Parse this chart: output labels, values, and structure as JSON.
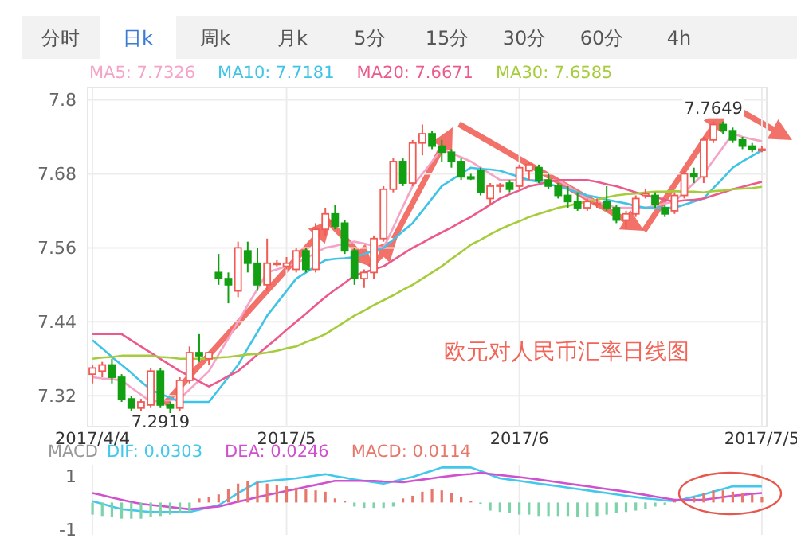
{
  "chart_data": [
    {
      "type": "candlestick",
      "title": "欧元对人民币汇率日线图",
      "categories": [
        "2017/4/4",
        null,
        null,
        null,
        null,
        null,
        null,
        null,
        null,
        null,
        null,
        null,
        null,
        null,
        null,
        null,
        null,
        null,
        null,
        null,
        "2017/5",
        null,
        null,
        null,
        null,
        null,
        null,
        null,
        null,
        null,
        null,
        null,
        null,
        null,
        null,
        null,
        null,
        null,
        null,
        null,
        null,
        null,
        null,
        null,
        "2017/6",
        null,
        null,
        null,
        null,
        null,
        null,
        null,
        null,
        null,
        null,
        null,
        null,
        null,
        null,
        null,
        null,
        null,
        null,
        null,
        null,
        null,
        null,
        null,
        null,
        "2017/7/5"
      ],
      "ohlc": [
        [
          7.355,
          7.37,
          7.34,
          7.365
        ],
        [
          7.36,
          7.375,
          7.35,
          7.37
        ],
        [
          7.37,
          7.38,
          7.34,
          7.35
        ],
        [
          7.35,
          7.355,
          7.31,
          7.315
        ],
        [
          7.315,
          7.32,
          7.295,
          7.3
        ],
        [
          7.3,
          7.315,
          7.295,
          7.31
        ],
        [
          7.305,
          7.365,
          7.3,
          7.36
        ],
        [
          7.36,
          7.365,
          7.3,
          7.305
        ],
        [
          7.305,
          7.31,
          7.2919,
          7.3
        ],
        [
          7.3,
          7.35,
          7.295,
          7.345
        ],
        [
          7.345,
          7.4,
          7.34,
          7.39
        ],
        [
          7.39,
          7.42,
          7.375,
          7.385
        ],
        [
          7.38,
          7.39,
          7.37,
          7.39
        ],
        [
          7.52,
          7.55,
          7.5,
          7.51
        ],
        [
          7.51,
          7.52,
          7.47,
          7.5
        ],
        [
          7.49,
          7.57,
          7.48,
          7.56
        ],
        [
          7.555,
          7.57,
          7.52,
          7.535
        ],
        [
          7.535,
          7.56,
          7.49,
          7.5
        ],
        [
          7.5,
          7.575,
          7.49,
          7.535
        ],
        [
          7.535,
          7.54,
          7.53,
          7.535
        ],
        [
          7.53,
          7.545,
          7.525,
          7.535
        ],
        [
          7.525,
          7.56,
          7.52,
          7.555
        ],
        [
          7.555,
          7.56,
          7.52,
          7.525
        ],
        [
          7.525,
          7.6,
          7.52,
          7.59
        ],
        [
          7.59,
          7.625,
          7.58,
          7.615
        ],
        [
          7.615,
          7.63,
          7.59,
          7.595
        ],
        [
          7.6,
          7.605,
          7.55,
          7.555
        ],
        [
          7.555,
          7.56,
          7.5,
          7.51
        ],
        [
          7.51,
          7.525,
          7.495,
          7.52
        ],
        [
          7.52,
          7.58,
          7.51,
          7.575
        ],
        [
          7.575,
          7.66,
          7.57,
          7.655
        ],
        [
          7.655,
          7.705,
          7.65,
          7.7
        ],
        [
          7.7,
          7.705,
          7.66,
          7.665
        ],
        [
          7.665,
          7.735,
          7.66,
          7.73
        ],
        [
          7.73,
          7.76,
          7.71,
          7.745
        ],
        [
          7.745,
          7.75,
          7.72,
          7.725
        ],
        [
          7.725,
          7.735,
          7.7,
          7.715
        ],
        [
          7.715,
          7.72,
          7.69,
          7.7
        ],
        [
          7.7,
          7.705,
          7.67,
          7.675
        ],
        [
          7.675,
          7.68,
          7.67,
          7.672
        ],
        [
          7.685,
          7.69,
          7.645,
          7.65
        ],
        [
          7.64,
          7.665,
          7.63,
          7.66
        ],
        [
          7.66,
          7.665,
          7.65,
          7.662
        ],
        [
          7.665,
          7.67,
          7.65,
          7.655
        ],
        [
          7.66,
          7.695,
          7.655,
          7.69
        ],
        [
          7.685,
          7.7,
          7.67,
          7.695
        ],
        [
          7.69,
          7.695,
          7.665,
          7.67
        ],
        [
          7.67,
          7.68,
          7.655,
          7.66
        ],
        [
          7.66,
          7.665,
          7.64,
          7.645
        ],
        [
          7.645,
          7.66,
          7.625,
          7.635
        ],
        [
          7.635,
          7.65,
          7.62,
          7.625
        ],
        [
          7.625,
          7.64,
          7.62,
          7.635
        ],
        [
          7.63,
          7.64,
          7.625,
          7.632
        ],
        [
          7.635,
          7.66,
          7.62,
          7.625
        ],
        [
          7.625,
          7.63,
          7.6,
          7.605
        ],
        [
          7.605,
          7.62,
          7.59,
          7.615
        ],
        [
          7.615,
          7.645,
          7.61,
          7.64
        ],
        [
          7.645,
          7.655,
          7.64,
          7.648
        ],
        [
          7.645,
          7.65,
          7.625,
          7.63
        ],
        [
          7.625,
          7.63,
          7.61,
          7.615
        ],
        [
          7.62,
          7.65,
          7.615,
          7.645
        ],
        [
          7.645,
          7.685,
          7.64,
          7.68
        ],
        [
          7.68,
          7.69,
          7.665,
          7.675
        ],
        [
          7.675,
          7.74,
          7.665,
          7.735
        ],
        [
          7.735,
          7.765,
          7.73,
          7.76
        ],
        [
          7.76,
          7.7649,
          7.745,
          7.75
        ],
        [
          7.75,
          7.755,
          7.73,
          7.735
        ],
        [
          7.735,
          7.74,
          7.72,
          7.725
        ],
        [
          7.725,
          7.73,
          7.715,
          7.72
        ],
        [
          7.72,
          7.725,
          7.715,
          7.72
        ]
      ],
      "colors": [
        "#f25a54",
        "#f25a54",
        "#12a012",
        "#12a012",
        "#12a012",
        "#f25a54",
        "#f25a54",
        "#12a012",
        "#12a012",
        "#f25a54",
        "#f25a54",
        "#12a012",
        "#f25a54",
        "#12a012",
        "#12a012",
        "#f25a54",
        "#12a012",
        "#12a012",
        "#f25a54",
        "#f25a54",
        "#f25a54",
        "#f25a54",
        "#12a012",
        "#f25a54",
        "#f25a54",
        "#12a012",
        "#12a012",
        "#12a012",
        "#f25a54",
        "#f25a54",
        "#f25a54",
        "#f25a54",
        "#12a012",
        "#f25a54",
        "#f25a54",
        "#12a012",
        "#12a012",
        "#12a012",
        "#12a012",
        "#12a012",
        "#12a012",
        "#f25a54",
        "#f25a54",
        "#12a012",
        "#f25a54",
        "#f25a54",
        "#12a012",
        "#12a012",
        "#12a012",
        "#12a012",
        "#12a012",
        "#f25a54",
        "#f25a54",
        "#12a012",
        "#12a012",
        "#f25a54",
        "#f25a54",
        "#f25a54",
        "#12a012",
        "#12a012",
        "#f25a54",
        "#f25a54",
        "#12a012",
        "#f25a54",
        "#f25a54",
        "#12a012",
        "#12a012",
        "#12a012",
        "#12a012",
        "#f25a54"
      ],
      "series": [
        {
          "name": "MA5: 7.7326",
          "type": "line",
          "color": "#f5a3c7",
          "values": [
            7.35,
            7.348,
            7.347,
            7.345,
            7.333,
            7.322,
            7.31,
            7.312,
            7.313,
            7.315,
            7.33,
            7.345,
            7.36,
            7.387,
            7.413,
            7.44,
            7.467,
            7.493,
            7.52,
            7.525,
            7.53,
            7.535,
            7.543,
            7.552,
            7.56,
            7.563,
            7.567,
            7.57,
            7.567,
            7.563,
            7.56,
            7.593,
            7.627,
            7.66,
            7.68,
            7.7,
            7.72,
            7.713,
            7.707,
            7.7,
            7.69,
            7.68,
            7.67,
            7.67,
            7.67,
            7.67,
            7.67,
            7.67,
            7.67,
            7.66,
            7.65,
            7.64,
            7.635,
            7.63,
            7.625,
            7.625,
            7.625,
            7.625,
            7.628,
            7.632,
            7.635,
            7.65,
            7.665,
            7.68,
            7.702,
            7.723,
            7.745,
            7.74,
            7.736,
            7.733
          ]
        },
        {
          "name": "MA10: 7.7181",
          "type": "line",
          "color": "#3fc3e6",
          "values": [
            7.41,
            7.397,
            7.383,
            7.37,
            7.357,
            7.343,
            7.33,
            7.323,
            7.317,
            7.31,
            7.31,
            7.31,
            7.31,
            7.33,
            7.35,
            7.37,
            7.397,
            7.423,
            7.45,
            7.47,
            7.49,
            7.51,
            7.52,
            7.53,
            7.54,
            7.542,
            7.543,
            7.545,
            7.55,
            7.555,
            7.56,
            7.573,
            7.587,
            7.6,
            7.62,
            7.64,
            7.66,
            7.67,
            7.68,
            7.69,
            7.688,
            7.687,
            7.685,
            7.68,
            7.675,
            7.67,
            7.667,
            7.663,
            7.66,
            7.655,
            7.65,
            7.645,
            7.642,
            7.638,
            7.635,
            7.632,
            7.628,
            7.625,
            7.625,
            7.625,
            7.625,
            7.63,
            7.635,
            7.64,
            7.657,
            7.673,
            7.69,
            7.7,
            7.709,
            7.718
          ]
        },
        {
          "name": "MA20: 7.6671",
          "type": "line",
          "color": "#ec5a8c",
          "values": [
            7.42,
            7.42,
            7.42,
            7.42,
            7.41,
            7.4,
            7.39,
            7.38,
            7.37,
            7.36,
            7.352,
            7.343,
            7.335,
            7.343,
            7.352,
            7.36,
            7.373,
            7.387,
            7.4,
            7.413,
            7.427,
            7.44,
            7.453,
            7.467,
            7.48,
            7.492,
            7.503,
            7.515,
            7.52,
            7.525,
            7.53,
            7.54,
            7.55,
            7.56,
            7.568,
            7.577,
            7.585,
            7.593,
            7.602,
            7.61,
            7.62,
            7.63,
            7.64,
            7.647,
            7.653,
            7.66,
            7.663,
            7.667,
            7.67,
            7.67,
            7.67,
            7.67,
            7.667,
            7.663,
            7.66,
            7.655,
            7.65,
            7.645,
            7.642,
            7.638,
            7.635,
            7.637,
            7.638,
            7.64,
            7.645,
            7.65,
            7.655,
            7.659,
            7.663,
            7.667
          ]
        },
        {
          "name": "MA30: 7.6585",
          "type": "line",
          "color": "#a6cc3c",
          "values": [
            7.38,
            7.382,
            7.383,
            7.385,
            7.385,
            7.385,
            7.385,
            7.383,
            7.382,
            7.38,
            7.38,
            7.38,
            7.38,
            7.382,
            7.383,
            7.385,
            7.387,
            7.388,
            7.39,
            7.393,
            7.397,
            7.4,
            7.407,
            7.413,
            7.42,
            7.43,
            7.44,
            7.45,
            7.458,
            7.467,
            7.475,
            7.483,
            7.492,
            7.5,
            7.51,
            7.52,
            7.53,
            7.542,
            7.553,
            7.565,
            7.573,
            7.582,
            7.59,
            7.597,
            7.603,
            7.61,
            7.615,
            7.62,
            7.625,
            7.628,
            7.632,
            7.635,
            7.638,
            7.642,
            7.645,
            7.647,
            7.648,
            7.65,
            7.651,
            7.651,
            7.652,
            7.651,
            7.651,
            7.65,
            7.652,
            7.653,
            7.655,
            7.656,
            7.657,
            7.659
          ]
        }
      ],
      "ylim": [
        7.27,
        7.82
      ],
      "yticks": [
        7.32,
        7.44,
        7.56,
        7.68,
        7.8
      ],
      "grid": true,
      "legend": "top left",
      "annotations": [
        "分时",
        "日k",
        "周k",
        "月k",
        "5分",
        "15分",
        "30分",
        "60分",
        "4h",
        {
          "text": "7.7649",
          "y": 7.7649
        },
        {
          "text": "7.2919",
          "y": 7.2919
        }
      ]
    },
    {
      "type": "bar",
      "title": "MACD",
      "categories": [
        "2017/4/4",
        null,
        null,
        null,
        null,
        null,
        null,
        null,
        null,
        null,
        null,
        null,
        null,
        null,
        null,
        null,
        null,
        null,
        null,
        null,
        "2017/5",
        null,
        null,
        null,
        null,
        null,
        null,
        null,
        null,
        null,
        null,
        null,
        null,
        null,
        null,
        null,
        null,
        null,
        null,
        null,
        null,
        null,
        null,
        null,
        "2017/6",
        null,
        null,
        null,
        null,
        null,
        null,
        null,
        null,
        null,
        null,
        null,
        null,
        null,
        null,
        null,
        null,
        null,
        null,
        null,
        null,
        null,
        null,
        null,
        null,
        "2017/7/5"
      ],
      "series": [
        {
          "name": "DIF: 0.0303",
          "type": "line",
          "color": "#41c8ec",
          "values": [
            0.05,
            -0.05,
            -0.15,
            -0.25,
            -0.28,
            -0.32,
            -0.35,
            -0.35,
            -0.35,
            -0.35,
            -0.35,
            -0.27,
            -0.18,
            -0.1,
            0.12,
            0.35,
            0.55,
            0.75,
            0.79,
            0.83,
            0.86,
            0.9,
            0.95,
            1.0,
            1.05,
            0.98,
            0.92,
            0.85,
            0.8,
            0.75,
            0.7,
            0.78,
            0.87,
            0.95,
            1.07,
            1.18,
            1.3,
            1.3,
            1.3,
            1.3,
            1.17,
            1.03,
            0.9,
            0.85,
            0.8,
            0.75,
            0.7,
            0.65,
            0.6,
            0.55,
            0.5,
            0.45,
            0.4,
            0.35,
            0.3,
            0.25,
            0.2,
            0.15,
            0.12,
            0.08,
            0.05,
            0.13,
            0.22,
            0.3,
            0.4,
            0.5,
            0.6,
            0.6,
            0.6,
            0.6
          ]
        },
        {
          "name": "DEA: 0.0246",
          "type": "line",
          "color": "#d050d0",
          "values": [
            0.35,
            0.27,
            0.18,
            0.1,
            0.02,
            -0.05,
            -0.09,
            -0.13,
            -0.17,
            -0.21,
            -0.25,
            -0.22,
            -0.18,
            -0.15,
            -0.06,
            0.03,
            0.11,
            0.2,
            0.28,
            0.35,
            0.43,
            0.5,
            0.58,
            0.65,
            0.73,
            0.8,
            0.8,
            0.8,
            0.8,
            0.8,
            0.78,
            0.77,
            0.75,
            0.8,
            0.85,
            0.9,
            0.95,
            0.99,
            1.03,
            1.06,
            1.1,
            1.06,
            1.02,
            0.98,
            0.94,
            0.9,
            0.85,
            0.8,
            0.75,
            0.7,
            0.65,
            0.6,
            0.55,
            0.5,
            0.45,
            0.4,
            0.34,
            0.28,
            0.22,
            0.16,
            0.1,
            0.1,
            0.1,
            0.1,
            0.15,
            0.2,
            0.25,
            0.28,
            0.32,
            0.35
          ]
        },
        {
          "name": "MACD: 0.0114",
          "type": "bar",
          "color": "#e8776b",
          "values": [
            -0.45,
            -0.5,
            -0.55,
            -0.6,
            -0.6,
            -0.6,
            -0.55,
            -0.5,
            -0.45,
            -0.4,
            -0.35,
            0.15,
            0.2,
            0.3,
            0.5,
            0.7,
            0.8,
            0.75,
            0.7,
            0.65,
            0.6,
            0.55,
            0.5,
            0.45,
            0.4,
            0.15,
            0.05,
            -0.15,
            -0.2,
            -0.2,
            -0.2,
            -0.15,
            0.15,
            0.25,
            0.4,
            0.5,
            0.45,
            0.35,
            0.2,
            0.05,
            -0.05,
            -0.3,
            -0.35,
            -0.4,
            -0.45,
            -0.45,
            -0.5,
            -0.5,
            -0.5,
            -0.5,
            -0.55,
            -0.55,
            -0.5,
            -0.45,
            -0.4,
            -0.35,
            -0.3,
            -0.25,
            -0.15,
            -0.1,
            0.05,
            0.1,
            0.2,
            0.35,
            0.45,
            0.45,
            0.4,
            0.35,
            0.3,
            0.2
          ],
          "colors": [
            "#7dd3a8",
            "#7dd3a8",
            "#7dd3a8",
            "#7dd3a8",
            "#7dd3a8",
            "#7dd3a8",
            "#7dd3a8",
            "#7dd3a8",
            "#7dd3a8",
            "#7dd3a8",
            "#7dd3a8",
            "#e8776b",
            "#e8776b",
            "#e8776b",
            "#e8776b",
            "#e8776b",
            "#e8776b",
            "#e8776b",
            "#e8776b",
            "#e8776b",
            "#e8776b",
            "#e8776b",
            "#e8776b",
            "#e8776b",
            "#e8776b",
            "#e8776b",
            "#e8776b",
            "#7dd3a8",
            "#7dd3a8",
            "#7dd3a8",
            "#7dd3a8",
            "#7dd3a8",
            "#e8776b",
            "#e8776b",
            "#e8776b",
            "#e8776b",
            "#e8776b",
            "#e8776b",
            "#e8776b",
            "#e8776b",
            "#7dd3a8",
            "#7dd3a8",
            "#7dd3a8",
            "#7dd3a8",
            "#7dd3a8",
            "#7dd3a8",
            "#7dd3a8",
            "#7dd3a8",
            "#7dd3a8",
            "#7dd3a8",
            "#7dd3a8",
            "#7dd3a8",
            "#7dd3a8",
            "#7dd3a8",
            "#7dd3a8",
            "#7dd3a8",
            "#7dd3a8",
            "#7dd3a8",
            "#7dd3a8",
            "#7dd3a8",
            "#e8776b",
            "#e8776b",
            "#e8776b",
            "#e8776b",
            "#e8776b",
            "#e8776b",
            "#e8776b",
            "#e8776b",
            "#e8776b",
            "#e8776b"
          ]
        }
      ],
      "ylim": [
        -1.2,
        1.4
      ],
      "yticks": [
        1,
        -1
      ],
      "grid": "x",
      "legend": "top left",
      "tick_labels": "y"
    }
  ]
}
